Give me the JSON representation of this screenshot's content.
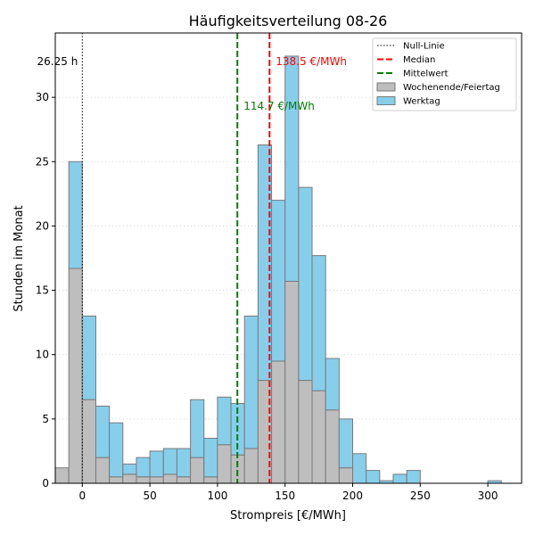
{
  "chart_data": {
    "type": "bar",
    "title": "Häufigkeitsverteilung 08-26",
    "xlabel": "Strompreis [€/MWh]",
    "ylabel": "Stunden im Monat",
    "xlim": [
      -20,
      325
    ],
    "ylim": [
      0,
      35
    ],
    "xticks": [
      0,
      50,
      100,
      150,
      200,
      250,
      300
    ],
    "yticks": [
      0,
      5,
      10,
      15,
      20,
      25,
      30
    ],
    "grid": "horizontal dotted",
    "bin_width": 10,
    "bins_start": [
      -20,
      -10,
      0,
      10,
      20,
      30,
      40,
      50,
      60,
      70,
      80,
      90,
      100,
      110,
      120,
      130,
      140,
      150,
      160,
      170,
      180,
      190,
      200,
      210,
      220,
      230,
      240,
      300
    ],
    "series": [
      {
        "name": "Wochenende/Feiertag",
        "color": "#bebebe",
        "values": [
          1.2,
          16.7,
          6.5,
          2.0,
          0.5,
          0.7,
          0.5,
          0.5,
          0.7,
          0.5,
          2.0,
          0.5,
          3.0,
          2.2,
          2.7,
          8.0,
          9.5,
          15.7,
          8.0,
          7.2,
          5.7,
          1.2,
          0,
          0,
          0,
          0,
          0,
          0
        ]
      },
      {
        "name": "Werktag",
        "color": "#87ceeb",
        "values": [
          0,
          8.3,
          6.5,
          4.0,
          4.2,
          0.8,
          1.5,
          2.0,
          2.0,
          2.2,
          4.5,
          3.0,
          3.7,
          4.0,
          10.3,
          18.3,
          12.5,
          17.5,
          15.0,
          10.5,
          4.0,
          3.8,
          2.3,
          1.0,
          0.2,
          0.7,
          1.0,
          0.2
        ]
      }
    ],
    "reference_lines": [
      {
        "name": "Null-Linie",
        "x": 0,
        "color": "#000000",
        "style": "dotted",
        "label": "26.25 h",
        "label_color": "#000000"
      },
      {
        "name": "Median",
        "x": 138.5,
        "color": "#ff0000",
        "style": "dashed",
        "label": "138.5 €/MWh",
        "label_color": "#ff0000"
      },
      {
        "name": "Mittelwert",
        "x": 114.7,
        "color": "#008000",
        "style": "dashed",
        "label": "114.7 €/MWh",
        "label_color": "#008000"
      }
    ],
    "legend": {
      "position": "top-right",
      "entries": [
        "Null-Linie",
        "Median",
        "Mittelwert",
        "Wochenende/Feiertag",
        "Werktag"
      ]
    }
  }
}
